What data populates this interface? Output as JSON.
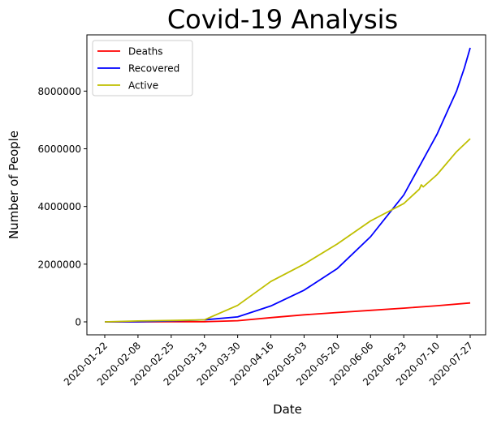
{
  "chart_data": {
    "type": "line",
    "title": "Covid-19 Analysis",
    "xlabel": "Date",
    "ylabel": "Number of People",
    "x_tick_labels": [
      "2020-01-22",
      "2020-02-08",
      "2020-02-25",
      "2020-03-13",
      "2020-03-30",
      "2020-04-16",
      "2020-05-03",
      "2020-05-20",
      "2020-06-06",
      "2020-06-23",
      "2020-07-10",
      "2020-07-27"
    ],
    "y_tick_labels": [
      "0",
      "2000000",
      "4000000",
      "6000000",
      "8000000"
    ],
    "x_range": [
      "2020-01-22",
      "2020-07-27"
    ],
    "ylim": [
      -450000,
      9950000
    ],
    "grid": false,
    "legend_position": "top-left",
    "series": [
      {
        "name": "Deaths",
        "color": "#ff0000",
        "points": [
          [
            "2020-01-22",
            17
          ],
          [
            "2020-02-08",
            806
          ],
          [
            "2020-02-25",
            2708
          ],
          [
            "2020-03-13",
            5400
          ],
          [
            "2020-03-30",
            39500
          ],
          [
            "2020-04-16",
            145000
          ],
          [
            "2020-05-03",
            245000
          ],
          [
            "2020-05-20",
            323000
          ],
          [
            "2020-06-06",
            398000
          ],
          [
            "2020-06-23",
            475000
          ],
          [
            "2020-07-10",
            560000
          ],
          [
            "2020-07-27",
            655000
          ]
        ]
      },
      {
        "name": "Recovered",
        "color": "#0000ff",
        "points": [
          [
            "2020-01-22",
            28
          ],
          [
            "2020-02-08",
            2600
          ],
          [
            "2020-02-25",
            30000
          ],
          [
            "2020-03-13",
            70000
          ],
          [
            "2020-03-30",
            170000
          ],
          [
            "2020-04-16",
            550000
          ],
          [
            "2020-05-03",
            1100000
          ],
          [
            "2020-05-20",
            1850000
          ],
          [
            "2020-06-06",
            2950000
          ],
          [
            "2020-06-23",
            4400000
          ],
          [
            "2020-07-10",
            6500000
          ],
          [
            "2020-07-17",
            7550000
          ],
          [
            "2020-07-20",
            8000000
          ],
          [
            "2020-07-24",
            8800000
          ],
          [
            "2020-07-27",
            9500000
          ]
        ]
      },
      {
        "name": "Active",
        "color": "#bfbf00",
        "points": [
          [
            "2020-01-22",
            510
          ],
          [
            "2020-02-08",
            30000
          ],
          [
            "2020-02-25",
            48000
          ],
          [
            "2020-03-13",
            70000
          ],
          [
            "2020-03-30",
            570000
          ],
          [
            "2020-04-16",
            1400000
          ],
          [
            "2020-05-03",
            2000000
          ],
          [
            "2020-05-20",
            2700000
          ],
          [
            "2020-06-06",
            3500000
          ],
          [
            "2020-06-23",
            4100000
          ],
          [
            "2020-07-01",
            4600000
          ],
          [
            "2020-07-02",
            4750000
          ],
          [
            "2020-07-03",
            4680000
          ],
          [
            "2020-07-10",
            5100000
          ],
          [
            "2020-07-20",
            5900000
          ],
          [
            "2020-07-27",
            6350000
          ]
        ]
      }
    ]
  }
}
